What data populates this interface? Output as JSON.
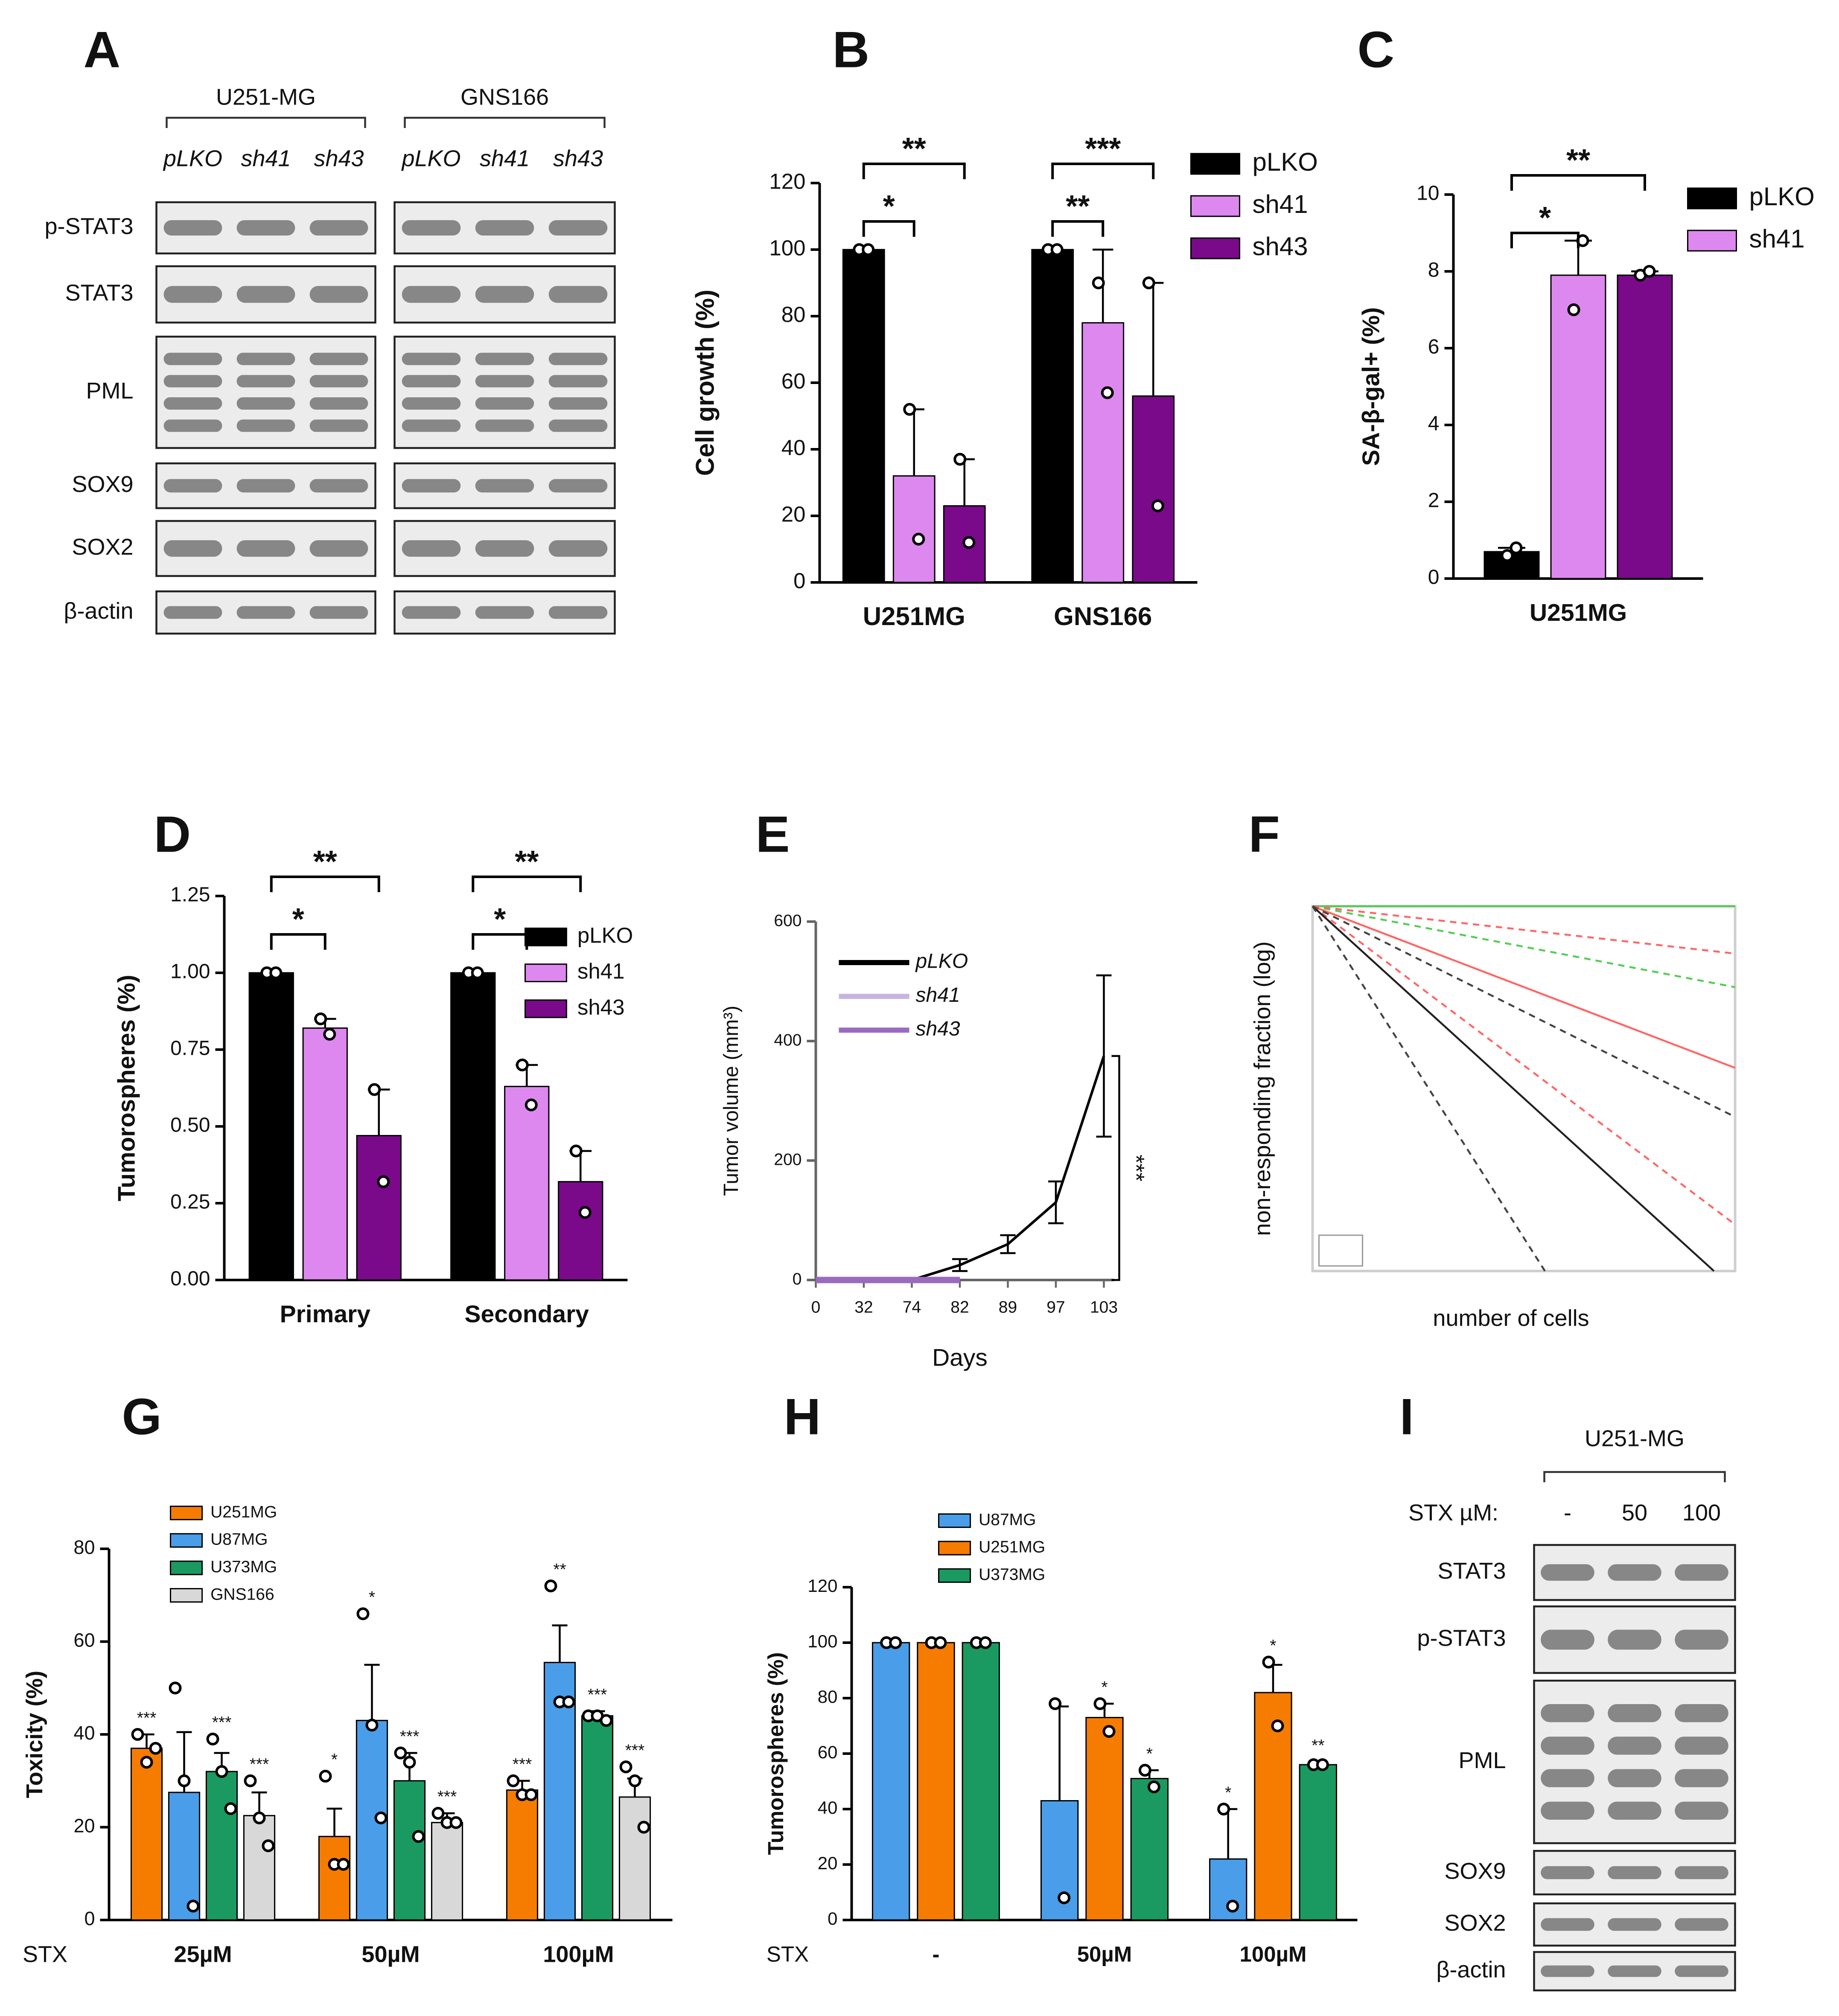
{
  "panel_labels": [
    "A",
    "B",
    "C",
    "D",
    "E",
    "F",
    "G",
    "H",
    "I"
  ],
  "blots": [
    {
      "groups": [
        {
          "name": "U251-MG",
          "lanes": [
            "pLKO",
            "sh41",
            "sh43"
          ]
        },
        {
          "name": "GNS166",
          "lanes": [
            "pLKO",
            "sh41",
            "sh43"
          ]
        }
      ],
      "rows": [
        "p-STAT3",
        "STAT3",
        "PML",
        "SOX9",
        "SOX2",
        "β-actin"
      ]
    },
    {
      "groups": [
        {
          "name": "U251-MG",
          "lanes": [
            "-",
            "50",
            "100"
          ]
        }
      ],
      "lane_label": "STX µM:",
      "rows": [
        "STAT3",
        "p-STAT3",
        "PML",
        "SOX9",
        "SOX2",
        "β-actin"
      ]
    }
  ],
  "chart_data": [
    {
      "type": "bar",
      "ylabel": "Cell growth (%)",
      "categories": [
        "U251MG",
        "GNS166"
      ],
      "ylim": [
        0,
        120
      ],
      "yticks": [
        0,
        20,
        40,
        60,
        80,
        100,
        120
      ],
      "series": [
        {
          "name": "pLKO",
          "color": "#000000",
          "values": [
            100,
            100
          ],
          "points": [
            [
              100,
              100
            ],
            [
              100,
              100
            ]
          ]
        },
        {
          "name": "sh41",
          "color": "#dd88ee",
          "values": [
            32,
            78
          ],
          "errors": [
            20,
            22
          ],
          "points": [
            [
              52,
              13
            ],
            [
              90,
              57
            ]
          ]
        },
        {
          "name": "sh43",
          "color": "#7a0a8a",
          "values": [
            23,
            56
          ],
          "errors": [
            14,
            34
          ],
          "points": [
            [
              37,
              12
            ],
            [
              90,
              23
            ]
          ]
        }
      ],
      "brackets": [
        {
          "text": "*",
          "category": "U251MG",
          "series": [
            0,
            1
          ]
        },
        {
          "text": "**",
          "category": "U251MG",
          "series": [
            0,
            2
          ]
        },
        {
          "text": "**",
          "category": "GNS166",
          "series": [
            0,
            1
          ]
        },
        {
          "text": "***",
          "category": "GNS166",
          "series": [
            0,
            2
          ]
        }
      ]
    },
    {
      "type": "bar",
      "ylabel": "SA-β-gal+ (%)",
      "categories": [
        "U251MG"
      ],
      "ylim": [
        0,
        10
      ],
      "yticks": [
        0,
        2,
        4,
        6,
        8,
        10
      ],
      "series": [
        {
          "name": "pLKO",
          "color": "#000000",
          "values": [
            0.7
          ],
          "errors": [
            0.1
          ],
          "points": [
            [
              0.6,
              0.8
            ]
          ]
        },
        {
          "name": "sh41",
          "color": "#dd88ee",
          "values": [
            7.9
          ],
          "errors": [
            0.9
          ],
          "points": [
            [
              7.0,
              8.8
            ]
          ]
        },
        {
          "name": null,
          "color": "#7a0a8a",
          "values": [
            7.9
          ],
          "errors": [
            0.1
          ],
          "points": [
            [
              7.9,
              8.0
            ]
          ]
        }
      ],
      "brackets": [
        {
          "text": "*",
          "category": "U251MG",
          "series": [
            0,
            1
          ]
        },
        {
          "text": "**",
          "category": "U251MG",
          "series": [
            0,
            2
          ]
        }
      ]
    },
    {
      "type": "bar",
      "ylabel": "Tumorospheres (%)",
      "categories": [
        "Primary",
        "Secondary"
      ],
      "ylim": [
        0,
        1.25
      ],
      "yticks": [
        {
          "value": 0,
          "label": "0.00"
        },
        {
          "value": 0.25,
          "label": "0.25"
        },
        {
          "value": 0.5,
          "label": "0.50"
        },
        {
          "value": 0.75,
          "label": "0.75"
        },
        {
          "value": 1,
          "label": "1.00"
        },
        {
          "value": 1.25,
          "label": "1.25"
        }
      ],
      "series": [
        {
          "name": "pLKO",
          "color": "#000000",
          "values": [
            1,
            1
          ],
          "points": [
            [
              1,
              1
            ],
            [
              1,
              1
            ]
          ]
        },
        {
          "name": "sh41",
          "color": "#dd88ee",
          "values": [
            0.82,
            0.63
          ],
          "errors": [
            0.03,
            0.07
          ],
          "points": [
            [
              0.85,
              0.8
            ],
            [
              0.7,
              0.57
            ]
          ]
        },
        {
          "name": "sh43",
          "color": "#7a0a8a",
          "values": [
            0.47,
            0.32
          ],
          "errors": [
            0.15,
            0.1
          ],
          "points": [
            [
              0.62,
              0.32
            ],
            [
              0.42,
              0.22
            ]
          ]
        }
      ],
      "brackets": [
        {
          "text": "*",
          "category": "Primary",
          "series": [
            0,
            1
          ]
        },
        {
          "text": "**",
          "category": "Primary",
          "series": [
            0,
            2
          ]
        },
        {
          "text": "*",
          "category": "Secondary",
          "series": [
            0,
            1
          ]
        },
        {
          "text": "**",
          "category": "Secondary",
          "series": [
            0,
            2
          ]
        }
      ]
    },
    {
      "type": "line",
      "xlabel": "Days",
      "ylabel": "Tumor volume (mm³)",
      "categories": [
        "0",
        "32",
        "74",
        "82",
        "89",
        "97",
        "103"
      ],
      "ylim": [
        0,
        600
      ],
      "yticks": [
        0,
        200,
        400,
        600
      ],
      "legend_italic": true,
      "series": [
        {
          "name": "pLKO",
          "color": "#000000",
          "values": [
            0,
            0,
            0,
            25,
            60,
            130,
            375
          ],
          "errors": [
            0,
            0,
            0,
            10,
            15,
            35,
            135
          ]
        },
        {
          "name": "sh41",
          "color": "#c8b4e0",
          "values": [
            0,
            0,
            0,
            0,
            null,
            null,
            null
          ]
        },
        {
          "name": "sh43",
          "color": "#9a6ac0",
          "values": [
            0,
            0,
            0,
            0,
            null,
            null,
            null
          ]
        }
      ],
      "annotations": [
        "***"
      ]
    },
    {
      "type": "line",
      "xlabel": "number of cells",
      "ylabel": "non-responding fraction (log)",
      "log_y": true,
      "xlim": [
        0,
        100
      ],
      "ylim": [
        0.01,
        1
      ],
      "series": [
        {
          "color": "#55cc55",
          "dashed": false,
          "x": [
            0,
            100
          ],
          "values": [
            1,
            1
          ]
        },
        {
          "color": "#55cc55",
          "dashed": true,
          "x": [
            0,
            100
          ],
          "values": [
            1,
            0.36
          ]
        },
        {
          "color": "#ff6666",
          "dashed": true,
          "x": [
            0,
            100
          ],
          "values": [
            1,
            0.55
          ]
        },
        {
          "color": "#ff6666",
          "dashed": false,
          "x": [
            0,
            100
          ],
          "values": [
            1,
            0.13
          ]
        },
        {
          "color": "#444444",
          "dashed": true,
          "x": [
            0,
            100
          ],
          "values": [
            1,
            0.07
          ]
        },
        {
          "color": "#ff6666",
          "dashed": true,
          "x": [
            0,
            100
          ],
          "values": [
            1,
            0.018
          ]
        },
        {
          "color": "#222222",
          "dashed": false,
          "x": [
            0,
            95
          ],
          "values": [
            1,
            0.01
          ]
        },
        {
          "color": "#444444",
          "dashed": true,
          "x": [
            0,
            55
          ],
          "values": [
            1,
            0.01
          ]
        }
      ]
    },
    {
      "type": "bar",
      "xlabel": "STX",
      "ylabel": "Toxicity (%)",
      "categories": [
        "25µM",
        "50µM",
        "100µM"
      ],
      "ylim": [
        0,
        80
      ],
      "yticks": [
        0,
        20,
        40,
        60,
        80
      ],
      "series": [
        {
          "name": "U251MG",
          "color": "#f57c00",
          "values": [
            37,
            18,
            28
          ],
          "errors": [
            3,
            6,
            2
          ],
          "points": [
            [
              40,
              34,
              37
            ],
            [
              31,
              12,
              12
            ],
            [
              30,
              27,
              27
            ]
          ],
          "significance": [
            "***",
            "*",
            "***"
          ]
        },
        {
          "name": "U87MG",
          "color": "#4a9de8",
          "values": [
            27.5,
            43,
            55.5
          ],
          "errors": [
            13,
            12,
            8
          ],
          "points": [
            [
              50,
              30,
              3
            ],
            [
              66,
              42,
              22
            ],
            [
              72,
              47,
              47
            ]
          ],
          "significance": [
            null,
            "*",
            "**"
          ]
        },
        {
          "name": "U373MG",
          "color": "#1a9a60",
          "values": [
            32,
            30,
            44
          ],
          "errors": [
            4,
            6,
            1
          ],
          "points": [
            [
              39,
              32,
              24
            ],
            [
              36,
              34,
              18
            ],
            [
              44,
              44,
              43
            ]
          ],
          "significance": [
            "***",
            "***",
            "***"
          ]
        },
        {
          "name": "GNS166",
          "color": "#d8d8d8",
          "values": [
            22.5,
            21,
            26.5
          ],
          "errors": [
            5,
            2,
            4
          ],
          "points": [
            [
              30,
              22,
              16
            ],
            [
              23,
              21,
              21
            ],
            [
              33,
              30,
              20
            ]
          ],
          "significance": [
            "***",
            "***",
            "***"
          ]
        }
      ]
    },
    {
      "type": "bar",
      "xlabel": "STX",
      "ylabel": "Tumorospheres (%)",
      "categories": [
        "-",
        "50µM",
        "100µM"
      ],
      "ylim": [
        0,
        120
      ],
      "yticks": [
        0,
        20,
        40,
        60,
        80,
        100,
        120
      ],
      "series": [
        {
          "name": "U87MG",
          "color": "#4a9de8",
          "values": [
            100,
            43,
            22
          ],
          "errors": [
            0,
            34,
            18
          ],
          "points": [
            [
              100,
              100
            ],
            [
              78,
              8
            ],
            [
              40,
              5
            ]
          ],
          "significance": [
            null,
            null,
            "*"
          ]
        },
        {
          "name": "U251MG",
          "color": "#f57c00",
          "values": [
            100,
            73,
            82
          ],
          "errors": [
            0,
            5,
            10
          ],
          "points": [
            [
              100,
              100
            ],
            [
              78,
              68
            ],
            [
              93,
              70
            ]
          ],
          "significance": [
            null,
            "*",
            "*"
          ]
        },
        {
          "name": "U373MG",
          "color": "#1a9a60",
          "values": [
            100,
            51,
            56
          ],
          "errors": [
            0,
            3,
            1
          ],
          "points": [
            [
              100,
              100
            ],
            [
              54,
              48
            ],
            [
              56,
              56
            ]
          ],
          "significance": [
            null,
            "*",
            "**"
          ]
        }
      ]
    }
  ]
}
